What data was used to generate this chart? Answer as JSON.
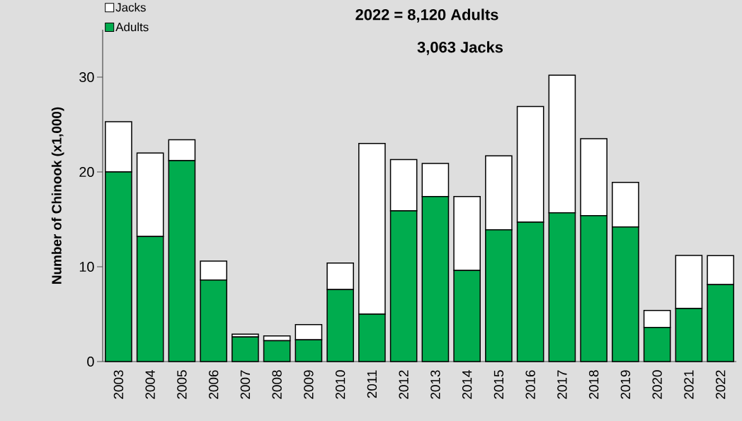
{
  "chart_data": {
    "type": "bar",
    "stacked": true,
    "ylabel": "Number of Chinook (x1,000)",
    "annotations": [
      "2022 = 8,120 Adults",
      "3,063 Jacks"
    ],
    "categories": [
      "2003",
      "2004",
      "2005",
      "2006",
      "2007",
      "2008",
      "2009",
      "2010",
      "2011",
      "2012",
      "2013",
      "2014",
      "2015",
      "2016",
      "2017",
      "2018",
      "2019",
      "2020",
      "2021",
      "2022"
    ],
    "series": [
      {
        "name": "Adults",
        "color": "#00ac4e",
        "values": [
          20.0,
          13.2,
          21.2,
          8.6,
          2.6,
          2.2,
          2.3,
          7.6,
          5.0,
          15.9,
          17.4,
          9.6,
          13.9,
          14.7,
          15.7,
          15.4,
          14.2,
          3.6,
          5.6,
          8.12
        ]
      },
      {
        "name": "Jacks",
        "color": "#ffffff",
        "values": [
          5.3,
          8.8,
          2.2,
          2.0,
          0.3,
          0.5,
          1.6,
          2.8,
          18.0,
          5.4,
          3.5,
          7.8,
          7.8,
          12.2,
          14.5,
          8.1,
          4.7,
          1.8,
          5.6,
          3.06
        ]
      }
    ],
    "ylim": [
      0,
      35
    ],
    "yticks": [
      0,
      10,
      20,
      30
    ],
    "grid": false,
    "legend": "top left"
  }
}
